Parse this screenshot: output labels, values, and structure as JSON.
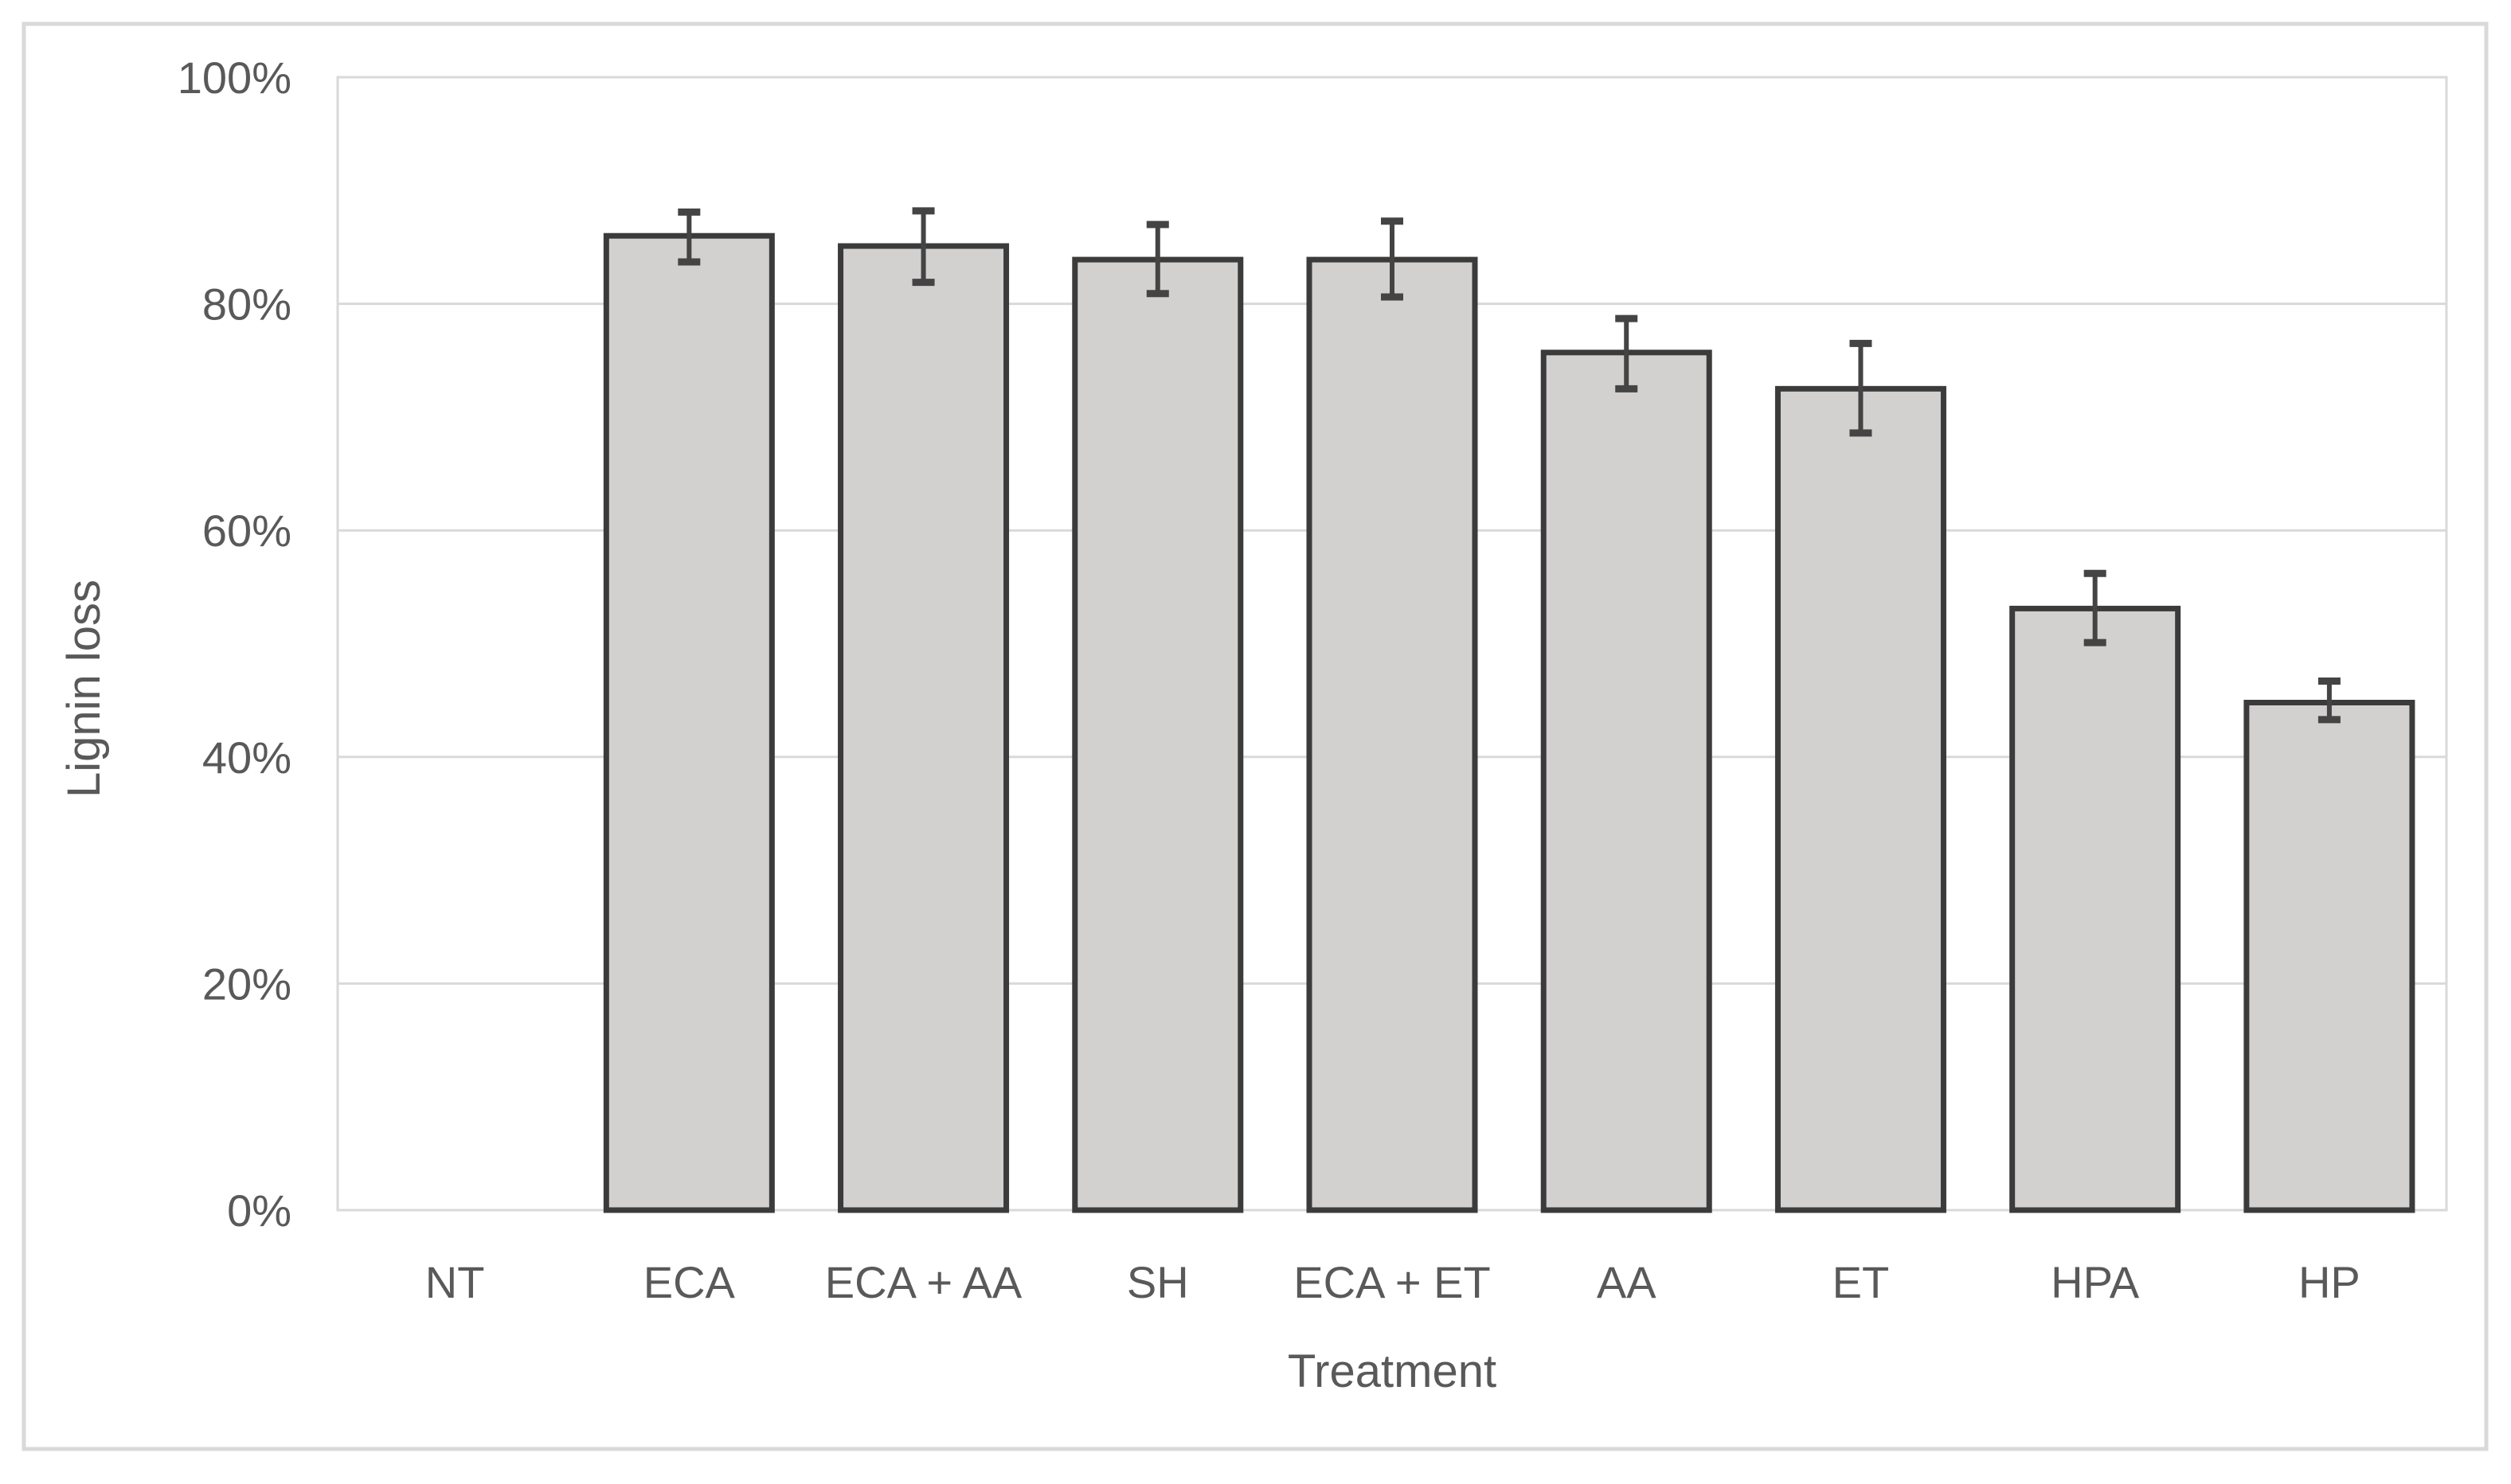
{
  "chart_data": {
    "type": "bar",
    "title": "",
    "xlabel": "Treatment",
    "ylabel": "Lignin loss",
    "categories": [
      "NT",
      "ECA",
      "ECA + AA",
      "SH",
      "ECA + ET",
      "AA",
      "ET",
      "HPA",
      "HP"
    ],
    "values": [
      0,
      86.0,
      85.1,
      83.9,
      83.9,
      75.7,
      72.5,
      53.1,
      44.8
    ],
    "error_plus": [
      0,
      2.1,
      3.1,
      3.1,
      3.4,
      3.0,
      4.0,
      3.1,
      1.9
    ],
    "error_minus": [
      0,
      2.3,
      3.2,
      3.0,
      3.3,
      3.2,
      3.9,
      3.0,
      1.5
    ],
    "y_tick_labels": [
      "0%",
      "20%",
      "40%",
      "60%",
      "80%",
      "100%"
    ],
    "y_tick_values": [
      0,
      20,
      40,
      60,
      80,
      100
    ],
    "ylim": [
      0,
      100
    ],
    "grid": true,
    "legend": false,
    "colors": {
      "bar_fill": "#d3d0d0",
      "bar_border": "#3b3b3b",
      "error_bar": "#444444",
      "gridline": "#d9d9d9",
      "plot_border": "#d9d9d9",
      "figure_border": "#d9d9d9",
      "text": "#595959",
      "background": "#ffffff"
    }
  }
}
